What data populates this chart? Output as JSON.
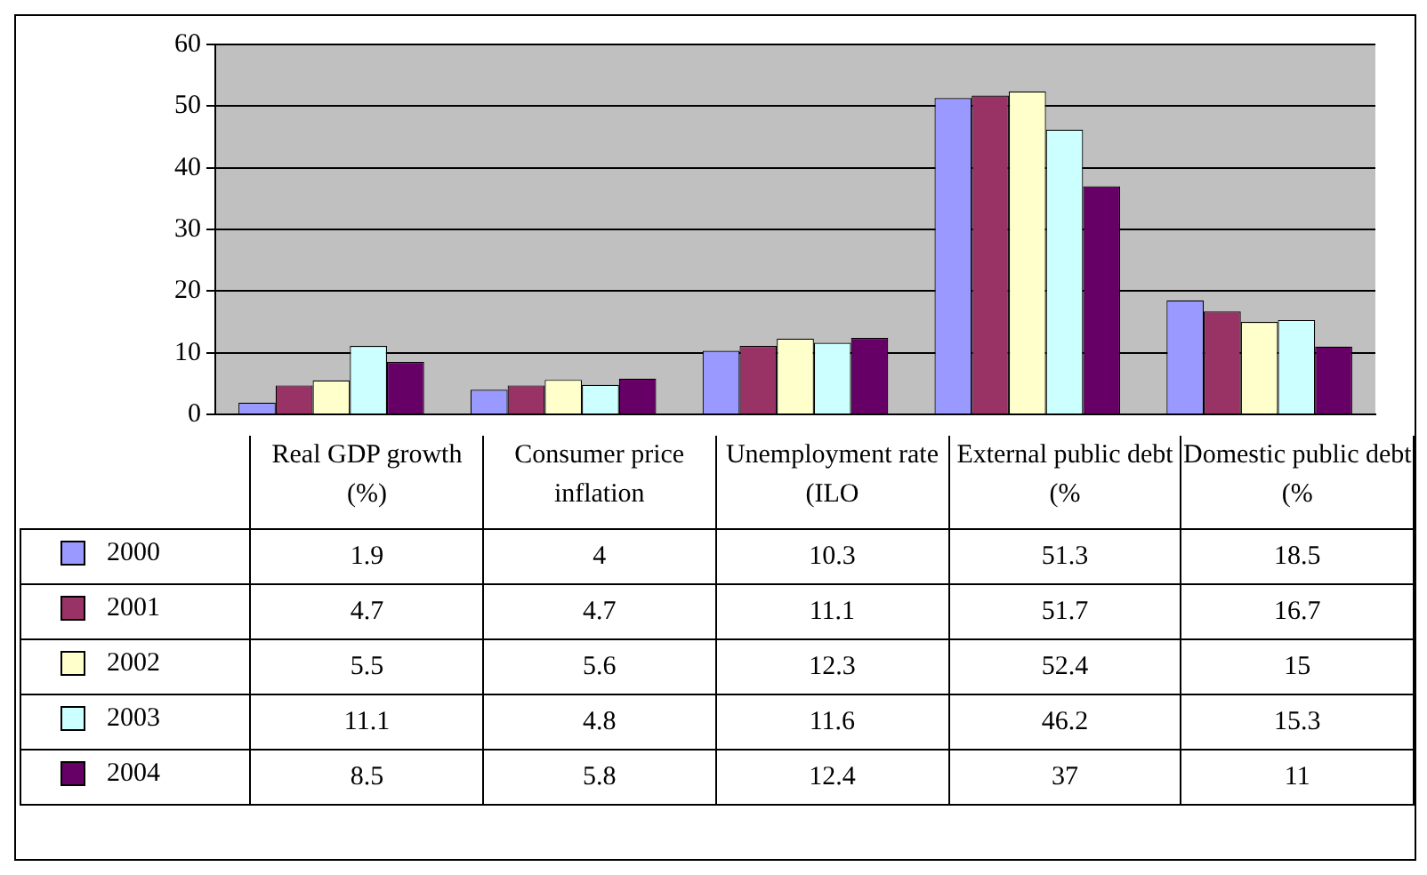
{
  "chart_data": {
    "type": "bar",
    "categories": [
      "Real GDP growth (%)",
      "Consumer price inflation",
      "Unemployment rate (ILO",
      "External public debt (%",
      "Domestic public debt (%"
    ],
    "series": [
      {
        "name": "2000",
        "color": "#9999ff",
        "values": [
          1.9,
          4,
          10.3,
          51.3,
          18.5
        ]
      },
      {
        "name": "2001",
        "color": "#993366",
        "values": [
          4.7,
          4.7,
          11.1,
          51.7,
          16.7
        ]
      },
      {
        "name": "2002",
        "color": "#ffffcc",
        "values": [
          5.5,
          5.6,
          12.3,
          52.4,
          15
        ]
      },
      {
        "name": "2003",
        "color": "#ccffff",
        "values": [
          11.1,
          4.8,
          11.6,
          46.2,
          15.3
        ]
      },
      {
        "name": "2004",
        "color": "#660066",
        "values": [
          8.5,
          5.8,
          12.4,
          37,
          11
        ]
      }
    ],
    "ylim": [
      0,
      60
    ],
    "yticks": [
      0,
      10,
      20,
      30,
      40,
      50,
      60
    ],
    "grid": "y",
    "legend": "bottom left",
    "data_labels": true
  }
}
